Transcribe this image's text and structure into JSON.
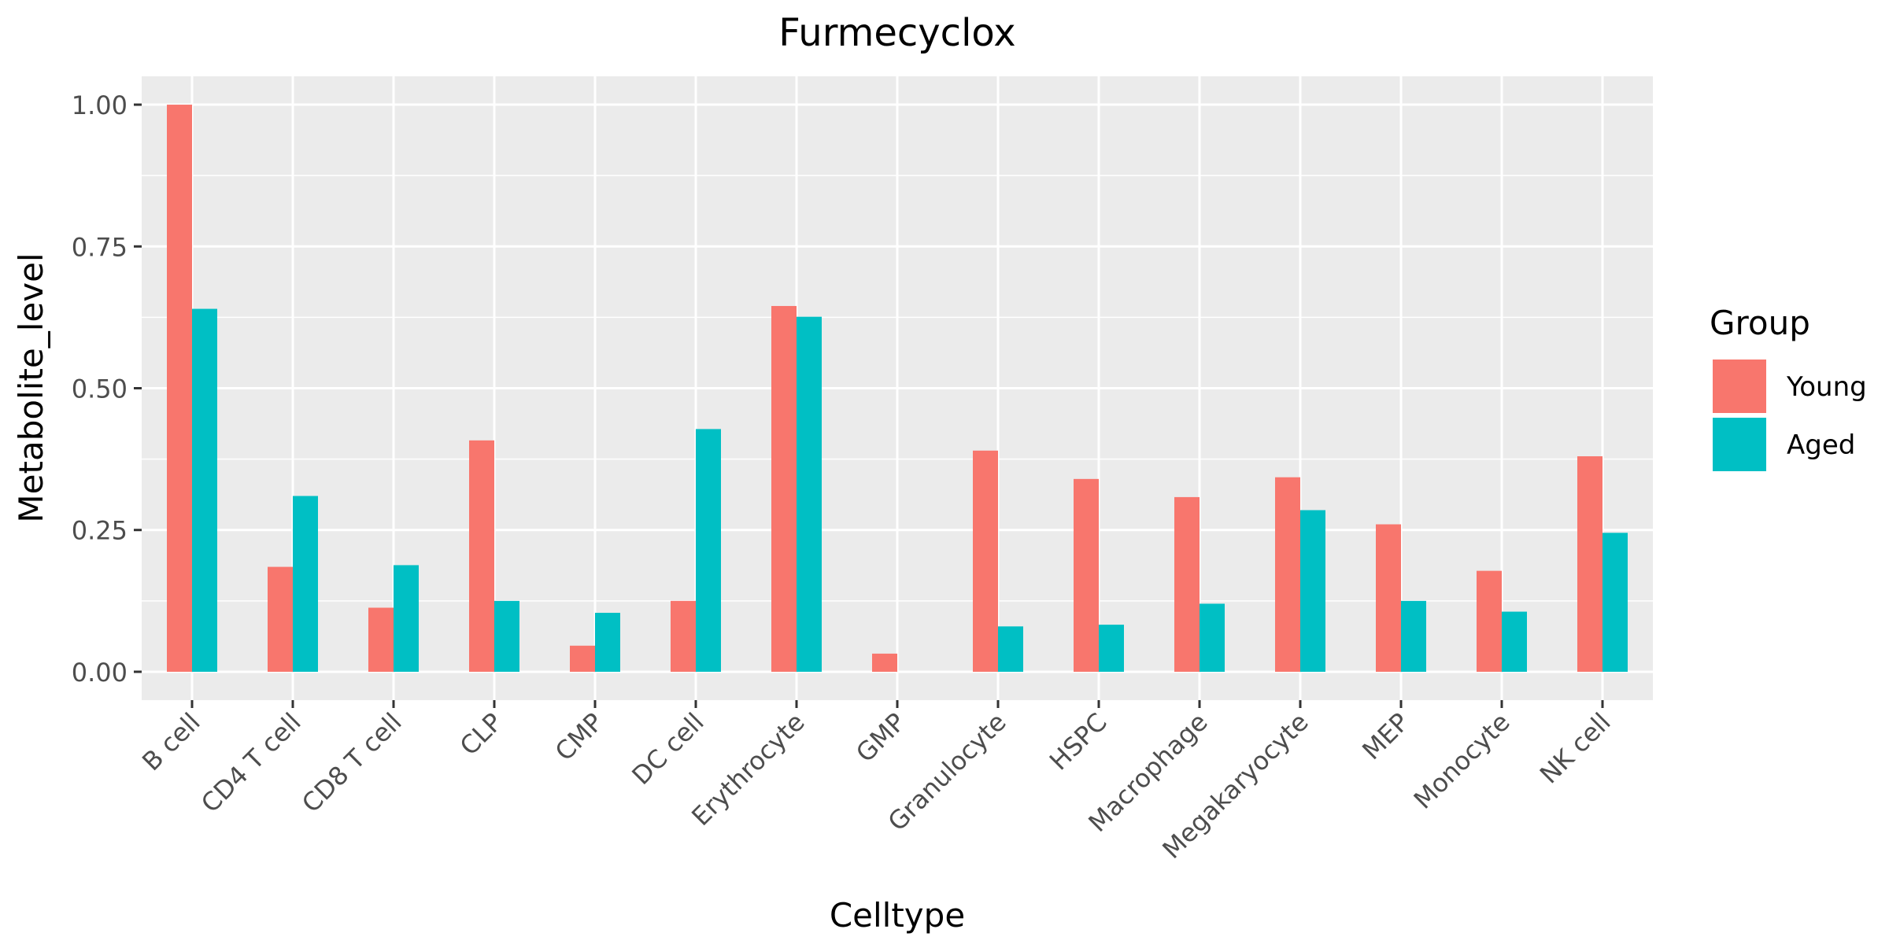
{
  "chart_data": {
    "type": "bar",
    "title": "Furmecyclox",
    "xlabel": "Celltype",
    "ylabel": "Metabolite_level",
    "categories": [
      "B cell",
      "CD4 T cell",
      "CD8 T cell",
      "CLP",
      "CMP",
      "DC cell",
      "Erythrocyte",
      "GMP",
      "Granulocyte",
      "HSPC",
      "Macrophage",
      "Megakaryocyte",
      "MEP",
      "Monocyte",
      "NK cell"
    ],
    "series": [
      {
        "name": "Young",
        "color": "#F8766D",
        "values": [
          1.0,
          0.185,
          0.113,
          0.408,
          0.046,
          0.125,
          0.645,
          0.032,
          0.39,
          0.34,
          0.308,
          0.343,
          0.26,
          0.178,
          0.38
        ]
      },
      {
        "name": "Aged",
        "color": "#00BFC4",
        "values": [
          0.64,
          0.31,
          0.188,
          0.125,
          0.104,
          0.428,
          0.626,
          0.0,
          0.08,
          0.083,
          0.12,
          0.285,
          0.125,
          0.106,
          0.245
        ]
      }
    ],
    "ylim": [
      -0.05,
      1.05
    ],
    "yticks": [
      0.0,
      0.25,
      0.5,
      0.75,
      1.0
    ],
    "ytick_labels": [
      "0.00",
      "0.25",
      "0.50",
      "0.75",
      "1.00"
    ],
    "legend": {
      "title": "Group",
      "position": "right"
    },
    "grid": true,
    "panel_color": "#EBEBEB"
  }
}
